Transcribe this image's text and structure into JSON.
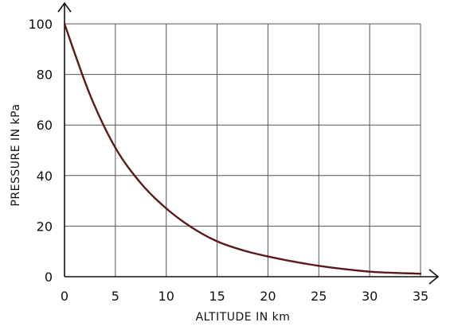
{
  "chart_data": {
    "type": "line",
    "title": "",
    "xlabel": "ALTITUDE  IN  km",
    "ylabel": "PRESSURE  IN  kPa",
    "xlim": [
      0,
      35
    ],
    "ylim": [
      0,
      100
    ],
    "xticks": [
      0,
      5,
      10,
      15,
      20,
      25,
      30,
      35
    ],
    "yticks": [
      0,
      20,
      40,
      60,
      80,
      100
    ],
    "x_tick_labels": [
      "0",
      "5",
      "10",
      "15",
      "20",
      "25",
      "30",
      "35"
    ],
    "y_tick_labels": [
      "0",
      "20",
      "40",
      "60",
      "80",
      "100"
    ],
    "grid": true,
    "legend": "none",
    "line_color": "#5a1a1a",
    "series": [
      {
        "x": [
          0,
          2.5,
          5,
          7.5,
          10,
          12.5,
          15,
          17.5,
          20,
          22.5,
          25,
          27.5,
          30,
          32.5,
          35
        ],
        "y": [
          100,
          72,
          51,
          37,
          27,
          19.5,
          14,
          10.5,
          8,
          6,
          4.3,
          3,
          2,
          1.5,
          1.2
        ]
      }
    ]
  }
}
